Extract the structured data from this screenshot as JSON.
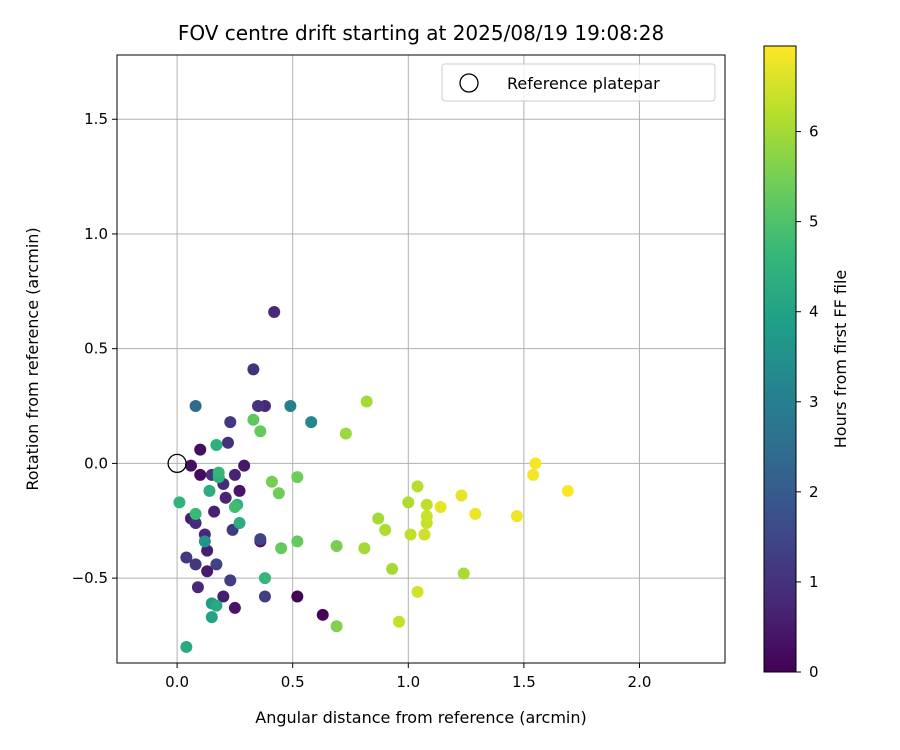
{
  "chart_data": {
    "type": "scatter",
    "title": "FOV centre drift starting at 2025/08/19 19:08:28",
    "xlabel": "Angular distance from reference (arcmin)",
    "ylabel": "Rotation from reference (arcmin)",
    "xlim": [
      -0.26,
      2.37
    ],
    "ylim": [
      -0.87,
      1.78
    ],
    "xticks": [
      0.0,
      0.5,
      1.0,
      1.5,
      2.0
    ],
    "xtick_labels": [
      "0.0",
      "0.5",
      "1.0",
      "1.5",
      "2.0"
    ],
    "yticks": [
      -0.5,
      0.0,
      0.5,
      1.0,
      1.5
    ],
    "ytick_labels": [
      "−0.5",
      "0.0",
      "0.5",
      "1.0",
      "1.5"
    ],
    "grid": true,
    "legend": {
      "position": "top-right",
      "entries": [
        "Reference platepar"
      ]
    },
    "reference_point": {
      "x": 0.0,
      "y": 0.0,
      "label": "Reference platepar"
    },
    "colorbar": {
      "label": "Hours from first FF file",
      "colormap": "viridis",
      "range": [
        0,
        6.95
      ],
      "ticks": [
        0,
        1,
        2,
        3,
        4,
        5,
        6
      ],
      "tick_labels": [
        "0",
        "1",
        "2",
        "3",
        "4",
        "5",
        "6"
      ]
    },
    "points": [
      {
        "x": 0.52,
        "y": -0.58,
        "t": 0.05
      },
      {
        "x": 0.63,
        "y": -0.66,
        "t": 0.1
      },
      {
        "x": 0.1,
        "y": -0.05,
        "t": 0.2
      },
      {
        "x": 0.1,
        "y": 0.06,
        "t": 0.25
      },
      {
        "x": 0.06,
        "y": -0.01,
        "t": 0.3
      },
      {
        "x": 0.27,
        "y": -0.12,
        "t": 0.4
      },
      {
        "x": 0.25,
        "y": -0.63,
        "t": 0.4
      },
      {
        "x": 0.29,
        "y": -0.01,
        "t": 0.45
      },
      {
        "x": 0.36,
        "y": -0.34,
        "t": 0.45
      },
      {
        "x": 0.13,
        "y": -0.47,
        "t": 0.5
      },
      {
        "x": 0.06,
        "y": -0.24,
        "t": 0.55
      },
      {
        "x": 0.2,
        "y": -0.58,
        "t": 0.6
      },
      {
        "x": 0.13,
        "y": -0.38,
        "t": 0.6
      },
      {
        "x": 0.16,
        "y": -0.21,
        "t": 0.65
      },
      {
        "x": 0.21,
        "y": -0.15,
        "t": 0.7
      },
      {
        "x": 0.25,
        "y": -0.05,
        "t": 0.7
      },
      {
        "x": 0.12,
        "y": -0.31,
        "t": 0.75
      },
      {
        "x": 0.09,
        "y": -0.54,
        "t": 0.8
      },
      {
        "x": 0.38,
        "y": 0.25,
        "t": 0.8
      },
      {
        "x": 0.42,
        "y": 0.66,
        "t": 0.85
      },
      {
        "x": 0.2,
        "y": -0.09,
        "t": 0.85
      },
      {
        "x": 0.08,
        "y": -0.26,
        "t": 0.9
      },
      {
        "x": 0.22,
        "y": 0.09,
        "t": 0.95
      },
      {
        "x": 0.33,
        "y": 0.41,
        "t": 1.0
      },
      {
        "x": 0.15,
        "y": -0.05,
        "t": 1.0
      },
      {
        "x": 0.35,
        "y": 0.25,
        "t": 1.05
      },
      {
        "x": 0.23,
        "y": 0.18,
        "t": 1.1
      },
      {
        "x": 0.08,
        "y": -0.44,
        "t": 1.1
      },
      {
        "x": 0.04,
        "y": -0.41,
        "t": 1.15
      },
      {
        "x": 0.24,
        "y": -0.29,
        "t": 1.2
      },
      {
        "x": 0.23,
        "y": -0.51,
        "t": 1.25
      },
      {
        "x": 0.38,
        "y": -0.58,
        "t": 1.3
      },
      {
        "x": 0.17,
        "y": -0.44,
        "t": 1.35
      },
      {
        "x": 0.36,
        "y": -0.33,
        "t": 1.4
      },
      {
        "x": 0.08,
        "y": 0.25,
        "t": 2.4
      },
      {
        "x": 0.49,
        "y": 0.25,
        "t": 3.0
      },
      {
        "x": 0.58,
        "y": 0.18,
        "t": 3.2
      },
      {
        "x": 0.12,
        "y": -0.34,
        "t": 3.6
      },
      {
        "x": 0.15,
        "y": -0.61,
        "t": 3.8
      },
      {
        "x": 0.15,
        "y": -0.67,
        "t": 4.0
      },
      {
        "x": 0.04,
        "y": -0.8,
        "t": 4.2
      },
      {
        "x": 0.17,
        "y": -0.62,
        "t": 4.2
      },
      {
        "x": 0.27,
        "y": -0.26,
        "t": 4.3
      },
      {
        "x": 0.14,
        "y": -0.12,
        "t": 4.3
      },
      {
        "x": 0.18,
        "y": -0.06,
        "t": 4.4
      },
      {
        "x": 0.17,
        "y": 0.08,
        "t": 4.4
      },
      {
        "x": 0.26,
        "y": -0.18,
        "t": 4.4
      },
      {
        "x": 0.01,
        "y": -0.17,
        "t": 4.5
      },
      {
        "x": 0.38,
        "y": -0.5,
        "t": 4.6
      },
      {
        "x": 0.18,
        "y": -0.04,
        "t": 4.6
      },
      {
        "x": 0.08,
        "y": -0.22,
        "t": 4.7
      },
      {
        "x": 0.25,
        "y": -0.19,
        "t": 4.8
      },
      {
        "x": 0.33,
        "y": 0.19,
        "t": 5.2
      },
      {
        "x": 0.36,
        "y": 0.14,
        "t": 5.3
      },
      {
        "x": 0.45,
        "y": -0.37,
        "t": 5.3
      },
      {
        "x": 0.52,
        "y": -0.34,
        "t": 5.3
      },
      {
        "x": 0.44,
        "y": -0.13,
        "t": 5.4
      },
      {
        "x": 0.52,
        "y": -0.06,
        "t": 5.4
      },
      {
        "x": 0.41,
        "y": -0.08,
        "t": 5.5
      },
      {
        "x": 0.69,
        "y": -0.36,
        "t": 5.5
      },
      {
        "x": 0.69,
        "y": -0.71,
        "t": 5.6
      },
      {
        "x": 0.73,
        "y": 0.13,
        "t": 5.9
      },
      {
        "x": 0.82,
        "y": 0.27,
        "t": 6.0
      },
      {
        "x": 0.81,
        "y": -0.37,
        "t": 6.0
      },
      {
        "x": 0.93,
        "y": -0.46,
        "t": 6.0
      },
      {
        "x": 0.87,
        "y": -0.24,
        "t": 6.0
      },
      {
        "x": 1.24,
        "y": -0.48,
        "t": 6.05
      },
      {
        "x": 0.9,
        "y": -0.29,
        "t": 6.1
      },
      {
        "x": 1.0,
        "y": -0.17,
        "t": 6.1
      },
      {
        "x": 1.04,
        "y": -0.1,
        "t": 6.2
      },
      {
        "x": 1.08,
        "y": -0.18,
        "t": 6.3
      },
      {
        "x": 1.01,
        "y": -0.31,
        "t": 6.3
      },
      {
        "x": 0.96,
        "y": -0.69,
        "t": 6.35
      },
      {
        "x": 1.08,
        "y": -0.23,
        "t": 6.4
      },
      {
        "x": 1.08,
        "y": -0.26,
        "t": 6.4
      },
      {
        "x": 1.07,
        "y": -0.31,
        "t": 6.45
      },
      {
        "x": 1.04,
        "y": -0.56,
        "t": 6.5
      },
      {
        "x": 1.14,
        "y": -0.19,
        "t": 6.7
      },
      {
        "x": 1.23,
        "y": -0.14,
        "t": 6.7
      },
      {
        "x": 1.29,
        "y": -0.22,
        "t": 6.75
      },
      {
        "x": 1.47,
        "y": -0.23,
        "t": 6.8
      },
      {
        "x": 1.54,
        "y": -0.05,
        "t": 6.85
      },
      {
        "x": 1.55,
        "y": 0.0,
        "t": 6.9
      },
      {
        "x": 1.69,
        "y": -0.12,
        "t": 6.95
      }
    ]
  }
}
